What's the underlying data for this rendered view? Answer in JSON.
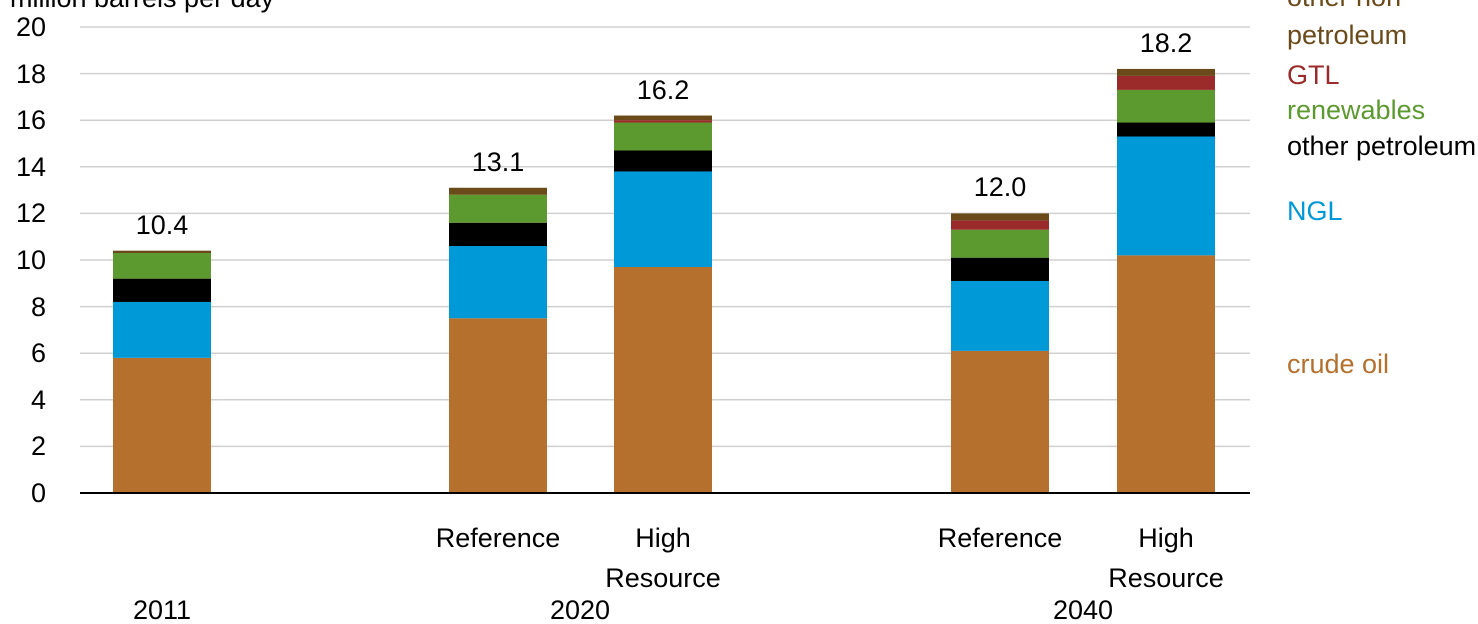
{
  "chart_data": {
    "type": "stacked_bar",
    "title": "million barrels per day",
    "categories": [
      null,
      "Reference",
      "High Resource",
      "Reference",
      "High Resource"
    ],
    "groups": [
      "2011",
      "2020",
      "2040"
    ],
    "series": [
      {
        "name": "crude oil",
        "color": "#b5702e",
        "values": [
          5.8,
          7.5,
          9.7,
          6.1,
          10.2
        ]
      },
      {
        "name": "NGL",
        "color": "#0099d8",
        "values": [
          2.4,
          3.1,
          4.1,
          3.0,
          5.1
        ]
      },
      {
        "name": "other petroleum",
        "color": "#000000",
        "values": [
          1.0,
          1.0,
          0.9,
          1.0,
          0.6
        ]
      },
      {
        "name": "renewables",
        "color": "#5c9a2f",
        "values": [
          1.1,
          1.2,
          1.2,
          1.2,
          1.4
        ]
      },
      {
        "name": "GTL",
        "color": "#9b2b2b",
        "values": [
          0.0,
          0.0,
          0.1,
          0.4,
          0.6
        ]
      },
      {
        "name": "other non-petroleum",
        "color": "#6b4a1a",
        "values": [
          0.1,
          0.3,
          0.2,
          0.3,
          0.3
        ]
      }
    ],
    "total_labels": [
      "10.4",
      "13.1",
      "16.2",
      "12.0",
      "18.2"
    ],
    "ylim": [
      0,
      20
    ],
    "yticks": [
      0,
      2,
      4,
      6,
      8,
      10,
      12,
      14,
      16,
      18,
      20
    ],
    "grid": true
  }
}
